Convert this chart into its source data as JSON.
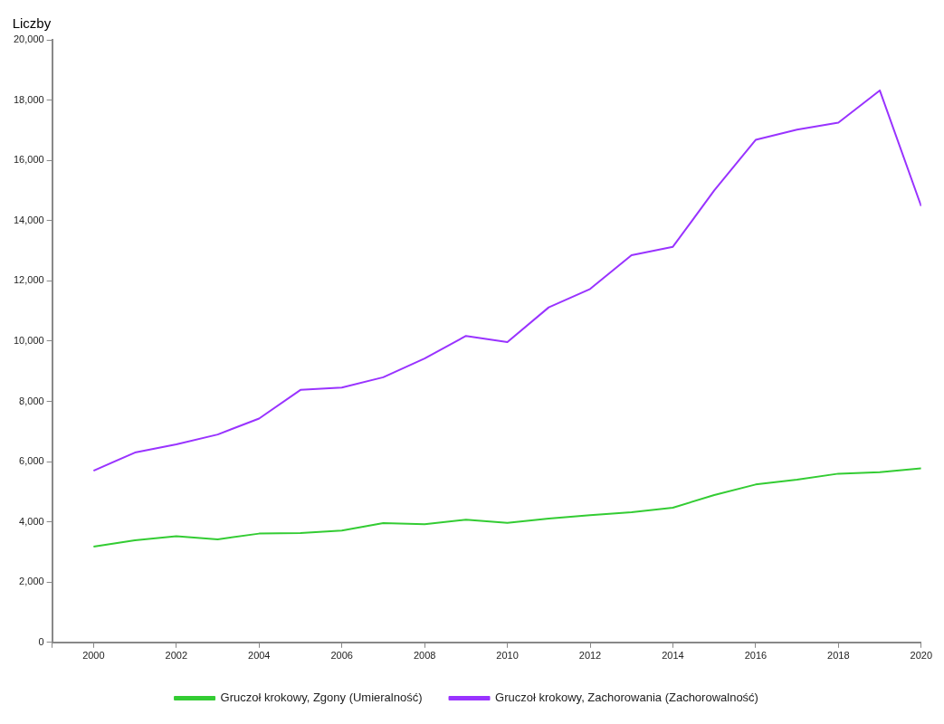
{
  "chart_data": {
    "type": "line",
    "ylabel": "Liczby",
    "x": [
      2000,
      2001,
      2002,
      2003,
      2004,
      2005,
      2006,
      2007,
      2008,
      2009,
      2010,
      2011,
      2012,
      2013,
      2014,
      2015,
      2016,
      2017,
      2018,
      2019,
      2020
    ],
    "series": [
      {
        "name": "Gruczoł krokowy, Zgony (Umieralność)",
        "color": "#33cc33",
        "values": [
          3180,
          3390,
          3520,
          3420,
          3610,
          3630,
          3710,
          3960,
          3920,
          4070,
          3970,
          4110,
          4220,
          4320,
          4470,
          4890,
          5240,
          5400,
          5600,
          5650,
          5780
        ]
      },
      {
        "name": "Gruczoł krokowy, Zachorowania (Zachorowalność)",
        "color": "#9933ff",
        "values": [
          5700,
          6300,
          6570,
          6900,
          7430,
          8380,
          8460,
          8800,
          9420,
          10170,
          9970,
          11120,
          11730,
          12850,
          13130,
          15000,
          16680,
          17020,
          17250,
          18320,
          14480
        ]
      }
    ],
    "xlim": [
      1999,
      2020
    ],
    "xticks": [
      {
        "value": 1999,
        "label": null
      },
      {
        "value": 2000,
        "label": "2000"
      },
      {
        "value": 2002,
        "label": "2002"
      },
      {
        "value": 2004,
        "label": "2004"
      },
      {
        "value": 2006,
        "label": "2006"
      },
      {
        "value": 2008,
        "label": "2008"
      },
      {
        "value": 2010,
        "label": "2010"
      },
      {
        "value": 2012,
        "label": "2012"
      },
      {
        "value": 2014,
        "label": "2014"
      },
      {
        "value": 2016,
        "label": "2016"
      },
      {
        "value": 2018,
        "label": "2018"
      },
      {
        "value": 2020,
        "label": "2020"
      }
    ],
    "ylim": [
      0,
      20000
    ],
    "yticks": [
      {
        "value": 0,
        "label": "0"
      },
      {
        "value": 2000,
        "label": "2,000"
      },
      {
        "value": 4000,
        "label": "4,000"
      },
      {
        "value": 6000,
        "label": "6,000"
      },
      {
        "value": 8000,
        "label": "8,000"
      },
      {
        "value": 10000,
        "label": "10,000"
      },
      {
        "value": 12000,
        "label": "12,000"
      },
      {
        "value": 14000,
        "label": "14,000"
      },
      {
        "value": 16000,
        "label": "16,000"
      },
      {
        "value": 18000,
        "label": "18,000"
      },
      {
        "value": 20000,
        "label": "20,000"
      }
    ],
    "grid": false,
    "legend": "bottom",
    "marker": "none",
    "line_style": "solid"
  }
}
